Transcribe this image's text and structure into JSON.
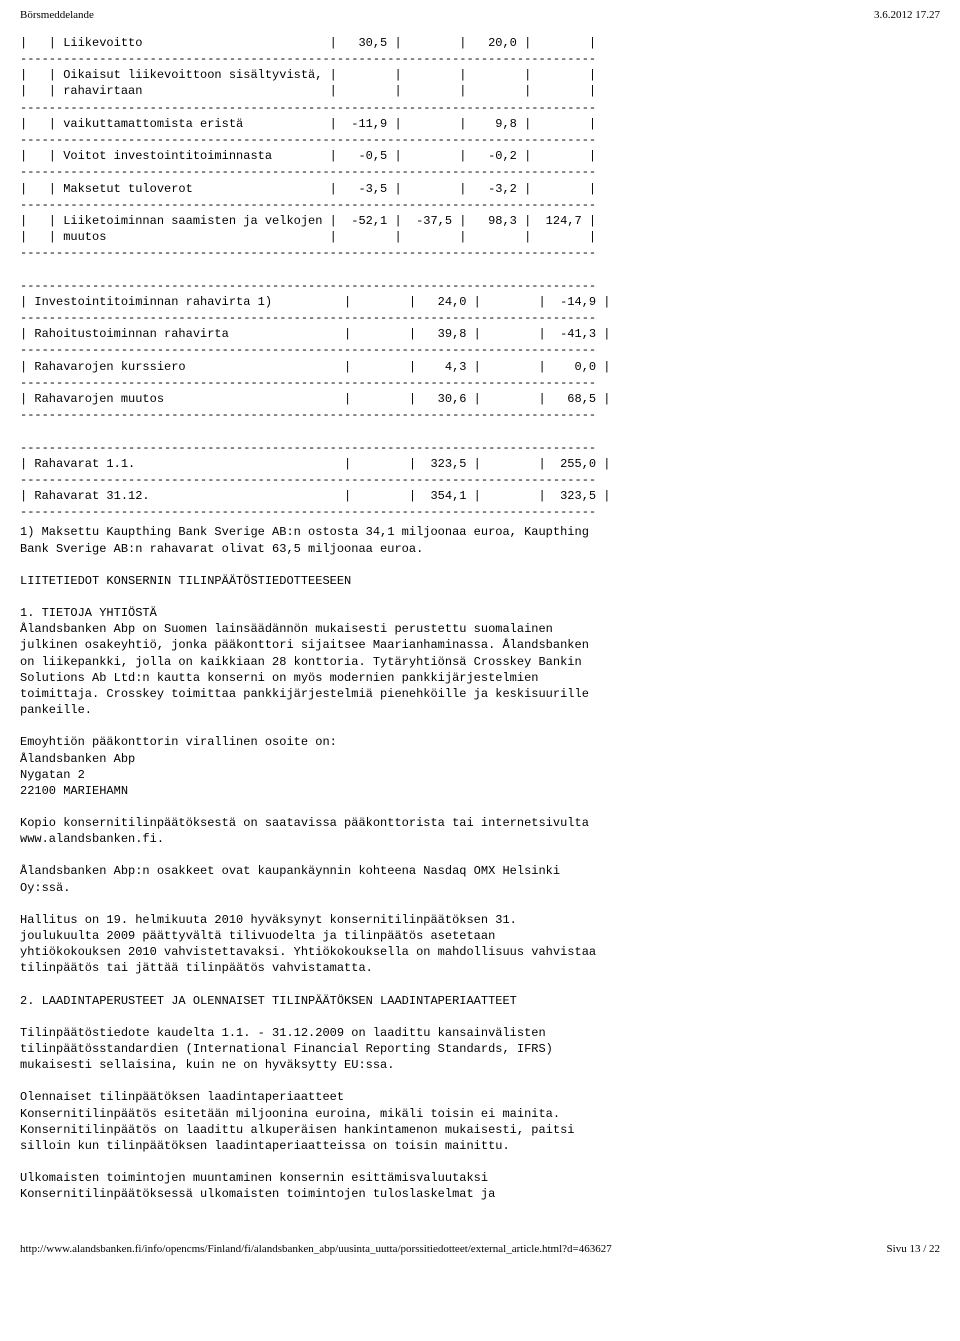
{
  "header": {
    "left": "Börsmeddelande",
    "right": "3.6.2012 17.27"
  },
  "table": {
    "hr": "--------------------------------------------------------------------------------",
    "rows": [
      {
        "label": "|   | Liikevoitto                          |   30,5 |        |   20,0 |        |"
      },
      {
        "hr": true
      },
      {
        "label": "|   | Oikaisut liikevoittoon sisältyvistä, |        |        |        |        |"
      },
      {
        "label": "|   | rahavirtaan                          |        |        |        |        |"
      },
      {
        "hr": true
      },
      {
        "label": "|   | vaikuttamattomista eristä            |  -11,9 |        |    9,8 |        |"
      },
      {
        "hr": true
      },
      {
        "label": "|   | Voitot investointitoiminnasta        |   -0,5 |        |   -0,2 |        |"
      },
      {
        "hr": true
      },
      {
        "label": "|   | Maksetut tuloverot                   |   -3,5 |        |   -3,2 |        |"
      },
      {
        "hr": true
      },
      {
        "label": "|   | Liiketoiminnan saamisten ja velkojen |  -52,1 |  -37,5 |   98,3 |  124,7 |"
      },
      {
        "label": "|   | muutos                               |        |        |        |        |"
      },
      {
        "hr": true
      },
      {
        "blank": true
      },
      {
        "hr": true
      },
      {
        "label": "| Investointitoiminnan rahavirta 1)          |        |   24,0 |        |  -14,9 |"
      },
      {
        "hr": true
      },
      {
        "label": "| Rahoitustoiminnan rahavirta                |        |   39,8 |        |  -41,3 |"
      },
      {
        "hr": true
      },
      {
        "label": "| Rahavarojen kurssiero                      |        |    4,3 |        |    0,0 |"
      },
      {
        "hr": true
      },
      {
        "label": "| Rahavarojen muutos                         |        |   30,6 |        |   68,5 |"
      },
      {
        "hr": true
      },
      {
        "blank": true
      },
      {
        "hr": true
      },
      {
        "label": "| Rahavarat 1.1.                             |        |  323,5 |        |  255,0 |"
      },
      {
        "hr": true
      },
      {
        "label": "| Rahavarat 31.12.                           |        |  354,1 |        |  323,5 |"
      },
      {
        "hr": true
      }
    ]
  },
  "paragraphs": [
    "1) Maksettu Kaupthing Bank Sverige AB:n ostosta 34,1 miljoonaa euroa, Kaupthing\nBank Sverige AB:n rahavarat olivat 63,5 miljoonaa euroa.",
    "LIITETIEDOT KONSERNIN TILINPÄÄTÖSTIEDOTTEESEEN",
    "1. TIETOJA YHTIÖSTÄ\nÅlandsbanken Abp on Suomen lainsäädännön mukaisesti perustettu suomalainen\njulkinen osakeyhtiö, jonka pääkonttori sijaitsee Maarianhaminassa. Ålandsbanken\non liikepankki, jolla on kaikkiaan 28 konttoria. Tytäryhtiönsä Crosskey Bankin\nSolutions Ab Ltd:n kautta konserni on myös modernien pankkijärjestelmien\ntoimittaja. Crosskey toimittaa pankkijärjestelmiä pienehköille ja keskisuurille\npankeille.",
    "Emoyhtiön pääkonttorin virallinen osoite on:\nÅlandsbanken Abp\nNygatan 2\n22100 MARIEHAMN",
    "Kopio konsernitilinpäätöksestä on saatavissa pääkonttorista tai internetsivulta\nwww.alandsbanken.fi.",
    "Ålandsbanken Abp:n osakkeet ovat kaupankäynnin kohteena Nasdaq OMX Helsinki\nOy:ssä.",
    "Hallitus on 19. helmikuuta 2010 hyväksynyt konsernitilinpäätöksen 31.\njoulukuulta 2009 päättyvältä tilivuodelta ja tilinpäätös asetetaan\nyhtiökokouksen 2010 vahvistettavaksi. Yhtiökokouksella on mahdollisuus vahvistaa\ntilinpäätös tai jättää tilinpäätös vahvistamatta.",
    "2. LAADINTAPERUSTEET JA OLENNAISET TILINPÄÄTÖKSEN LAADINTAPERIAATTEET",
    "Tilinpäätöstiedote kaudelta 1.1. - 31.12.2009 on laadittu kansainvälisten\ntilinpäätösstandardien (International Financial Reporting Standards, IFRS)\nmukaisesti sellaisina, kuin ne on hyväksytty EU:ssa.",
    "Olennaiset tilinpäätöksen laadintaperiaatteet\nKonsernitilinpäätös esitetään miljoonina euroina, mikäli toisin ei mainita.\nKonsernitilinpäätös on laadittu alkuperäisen hankintamenon mukaisesti, paitsi\nsilloin kun tilinpäätöksen laadintaperiaatteissa on toisin mainittu.",
    "Ulkomaisten toimintojen muuntaminen konsernin esittämisvaluutaksi\nKonsernitilinpäätöksessä ulkomaisten toimintojen tuloslaskelmat ja"
  ],
  "footer": {
    "url": "http://www.alandsbanken.fi/info/opencms/Finland/fi/alandsbanken_abp/uusinta_uutta/porssitiedotteet/external_article.html?d=463627",
    "page": "Sivu 13 / 22"
  }
}
